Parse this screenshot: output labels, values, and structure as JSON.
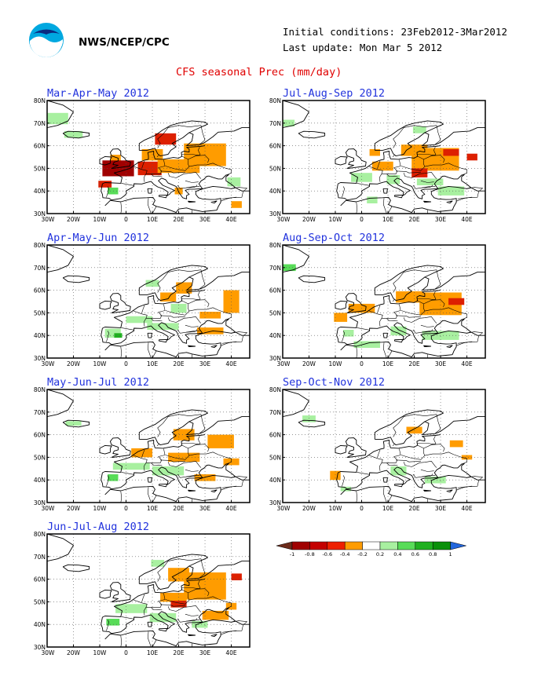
{
  "header": {
    "org": "NWS/NCEP/CPC",
    "initial_conditions": "Initial conditions: 23Feb2012-3Mar2012",
    "last_update": "Last update: Mon Mar 5 2012",
    "title": "CFS seasonal Prec (mm/day)"
  },
  "axes": {
    "lat_labels": [
      "80N",
      "70N",
      "60N",
      "50N",
      "40N",
      "30N"
    ],
    "lon_labels": [
      "30W",
      "20W",
      "10W",
      "0",
      "10E",
      "20E",
      "30E",
      "40E"
    ]
  },
  "colors": {
    "dry_strong": "#a00000",
    "dry_mid": "#dd2000",
    "dry_weak": "#ff9c00",
    "wet_weak": "#a8f0a0",
    "wet_mid": "#58dc58",
    "wet_strong": "#20b020",
    "neutral": "#ffffff"
  },
  "panels": [
    {
      "title": "Mar-Apr-May 2012",
      "anomalies": [
        {
          "lon": -28,
          "lat": 72,
          "w": 12,
          "h": 5,
          "v": 0.3
        },
        {
          "lon": -20,
          "lat": 65,
          "w": 7,
          "h": 3,
          "v": 0.3
        },
        {
          "lon": -4,
          "lat": 54,
          "w": 4,
          "h": 4,
          "v": -0.3
        },
        {
          "lon": -3,
          "lat": 50,
          "w": 12,
          "h": 7,
          "v": -0.8
        },
        {
          "lon": 9,
          "lat": 50,
          "w": 9,
          "h": 6,
          "v": -0.5
        },
        {
          "lon": 10,
          "lat": 56,
          "w": 8,
          "h": 5,
          "v": -0.3
        },
        {
          "lon": 15,
          "lat": 63,
          "w": 8,
          "h": 5,
          "v": -0.6
        },
        {
          "lon": 20,
          "lat": 51,
          "w": 16,
          "h": 6,
          "v": -0.3
        },
        {
          "lon": 30,
          "lat": 56,
          "w": 16,
          "h": 10,
          "v": -0.3
        },
        {
          "lon": -8,
          "lat": 43,
          "w": 5,
          "h": 3,
          "v": -0.6
        },
        {
          "lon": -5,
          "lat": 40,
          "w": 4,
          "h": 3,
          "v": 0.4
        },
        {
          "lon": 20,
          "lat": 40,
          "w": 3,
          "h": 3,
          "v": -0.3
        },
        {
          "lon": 41,
          "lat": 44,
          "w": 5,
          "h": 4,
          "v": 0.2
        },
        {
          "lon": 42,
          "lat": 34,
          "w": 4,
          "h": 3,
          "v": -0.3
        }
      ]
    },
    {
      "title": "Jul-Aug-Sep 2012",
      "anomalies": [
        {
          "lon": -28,
          "lat": 70,
          "w": 5,
          "h": 3,
          "v": 0.2
        },
        {
          "lon": 22,
          "lat": 67,
          "w": 5,
          "h": 3,
          "v": 0.2
        },
        {
          "lon": 5,
          "lat": 57,
          "w": 4,
          "h": 3,
          "v": -0.3
        },
        {
          "lon": 20,
          "lat": 58,
          "w": 10,
          "h": 5,
          "v": -0.3
        },
        {
          "lon": 28,
          "lat": 54,
          "w": 18,
          "h": 10,
          "v": -0.3
        },
        {
          "lon": 34,
          "lat": 57,
          "w": 6,
          "h": 3,
          "v": -0.6
        },
        {
          "lon": 42,
          "lat": 55,
          "w": 4,
          "h": 3,
          "v": -0.6
        },
        {
          "lon": 8,
          "lat": 51,
          "w": 8,
          "h": 4,
          "v": -0.3
        },
        {
          "lon": 22,
          "lat": 48,
          "w": 6,
          "h": 4,
          "v": -0.6
        },
        {
          "lon": 0,
          "lat": 46,
          "w": 8,
          "h": 4,
          "v": 0.2
        },
        {
          "lon": 12,
          "lat": 45,
          "w": 5,
          "h": 4,
          "v": 0.3
        },
        {
          "lon": 26,
          "lat": 44,
          "w": 10,
          "h": 3,
          "v": 0.2
        },
        {
          "lon": 34,
          "lat": 40,
          "w": 10,
          "h": 4,
          "v": 0.3
        },
        {
          "lon": 4,
          "lat": 36,
          "w": 4,
          "h": 3,
          "v": 0.3
        }
      ]
    },
    {
      "title": "Apr-May-Jun 2012",
      "anomalies": [
        {
          "lon": 10,
          "lat": 63,
          "w": 5,
          "h": 3,
          "v": 0.2
        },
        {
          "lon": 22,
          "lat": 61,
          "w": 6,
          "h": 5,
          "v": -0.3
        },
        {
          "lon": 16,
          "lat": 57,
          "w": 6,
          "h": 4,
          "v": -0.3
        },
        {
          "lon": 40,
          "lat": 55,
          "w": 6,
          "h": 10,
          "v": -0.3
        },
        {
          "lon": 20,
          "lat": 52,
          "w": 6,
          "h": 4,
          "v": 0.2
        },
        {
          "lon": 5,
          "lat": 47,
          "w": 10,
          "h": 3,
          "v": 0.3
        },
        {
          "lon": -5,
          "lat": 41,
          "w": 6,
          "h": 4,
          "v": 0.3
        },
        {
          "lon": -3,
          "lat": 40,
          "w": 3,
          "h": 2,
          "v": 0.6
        },
        {
          "lon": 14,
          "lat": 44,
          "w": 12,
          "h": 3,
          "v": 0.2
        },
        {
          "lon": 32,
          "lat": 42,
          "w": 10,
          "h": 3,
          "v": -0.3
        },
        {
          "lon": 32,
          "lat": 49,
          "w": 8,
          "h": 3,
          "v": -0.3
        }
      ]
    },
    {
      "title": "Aug-Sep-Oct 2012",
      "anomalies": [
        {
          "lon": -28,
          "lat": 70,
          "w": 6,
          "h": 3,
          "v": 0.4
        },
        {
          "lon": 18,
          "lat": 57,
          "w": 10,
          "h": 5,
          "v": -0.3
        },
        {
          "lon": 30,
          "lat": 54,
          "w": 16,
          "h": 10,
          "v": -0.3
        },
        {
          "lon": 36,
          "lat": 55,
          "w": 6,
          "h": 3,
          "v": -0.6
        },
        {
          "lon": 0,
          "lat": 52,
          "w": 10,
          "h": 4,
          "v": -0.3
        },
        {
          "lon": -8,
          "lat": 48,
          "w": 5,
          "h": 4,
          "v": -0.3
        },
        {
          "lon": -5,
          "lat": 41,
          "w": 4,
          "h": 3,
          "v": 0.2
        },
        {
          "lon": 14,
          "lat": 42,
          "w": 6,
          "h": 4,
          "v": 0.2
        },
        {
          "lon": 30,
          "lat": 40,
          "w": 14,
          "h": 4,
          "v": 0.3
        },
        {
          "lon": 2,
          "lat": 36,
          "w": 10,
          "h": 3,
          "v": 0.2
        }
      ]
    },
    {
      "title": "May-Jun-Jul 2012",
      "anomalies": [
        {
          "lon": -20,
          "lat": 65,
          "w": 6,
          "h": 2,
          "v": 0.2
        },
        {
          "lon": 22,
          "lat": 60,
          "w": 8,
          "h": 5,
          "v": -0.3
        },
        {
          "lon": 36,
          "lat": 57,
          "w": 10,
          "h": 6,
          "v": -0.3
        },
        {
          "lon": 6,
          "lat": 52,
          "w": 8,
          "h": 4,
          "v": -0.3
        },
        {
          "lon": 22,
          "lat": 50,
          "w": 12,
          "h": 4,
          "v": -0.3
        },
        {
          "lon": 2,
          "lat": 46,
          "w": 14,
          "h": 3,
          "v": 0.2
        },
        {
          "lon": 16,
          "lat": 44,
          "w": 12,
          "h": 4,
          "v": 0.3
        },
        {
          "lon": -5,
          "lat": 41,
          "w": 4,
          "h": 3,
          "v": 0.4
        },
        {
          "lon": 30,
          "lat": 41,
          "w": 8,
          "h": 3,
          "v": -0.3
        },
        {
          "lon": 40,
          "lat": 48,
          "w": 6,
          "h": 3,
          "v": -0.3
        }
      ]
    },
    {
      "title": "Sep-Oct-Nov 2012",
      "anomalies": [
        {
          "lon": -20,
          "lat": 67,
          "w": 5,
          "h": 3,
          "v": 0.2
        },
        {
          "lon": 20,
          "lat": 62,
          "w": 6,
          "h": 3,
          "v": -0.3
        },
        {
          "lon": 36,
          "lat": 56,
          "w": 5,
          "h": 3,
          "v": -0.3
        },
        {
          "lon": 40,
          "lat": 50,
          "w": 4,
          "h": 2,
          "v": -0.3
        },
        {
          "lon": -10,
          "lat": 42,
          "w": 4,
          "h": 4,
          "v": -0.3
        },
        {
          "lon": -6,
          "lat": 36,
          "w": 4,
          "h": 2,
          "v": 0.2
        },
        {
          "lon": 14,
          "lat": 44,
          "w": 6,
          "h": 4,
          "v": 0.2
        },
        {
          "lon": 28,
          "lat": 40,
          "w": 8,
          "h": 3,
          "v": 0.3
        }
      ]
    },
    {
      "title": "Jun-Jul-Aug 2012",
      "anomalies": [
        {
          "lon": 12,
          "lat": 67,
          "w": 5,
          "h": 3,
          "v": 0.2
        },
        {
          "lon": 20,
          "lat": 62,
          "w": 8,
          "h": 6,
          "v": -0.3
        },
        {
          "lon": 30,
          "lat": 57,
          "w": 16,
          "h": 12,
          "v": -0.3
        },
        {
          "lon": 42,
          "lat": 61,
          "w": 4,
          "h": 3,
          "v": -0.6
        },
        {
          "lon": 18,
          "lat": 52,
          "w": 10,
          "h": 4,
          "v": -0.3
        },
        {
          "lon": 20,
          "lat": 49,
          "w": 6,
          "h": 3,
          "v": -0.6
        },
        {
          "lon": 2,
          "lat": 47,
          "w": 12,
          "h": 4,
          "v": 0.3
        },
        {
          "lon": -5,
          "lat": 41,
          "w": 5,
          "h": 3,
          "v": 0.4
        },
        {
          "lon": 14,
          "lat": 43,
          "w": 10,
          "h": 4,
          "v": 0.2
        },
        {
          "lon": 34,
          "lat": 44,
          "w": 10,
          "h": 4,
          "v": -0.3
        },
        {
          "lon": 28,
          "lat": 40,
          "w": 6,
          "h": 3,
          "v": 0.2
        },
        {
          "lon": 40,
          "lat": 48,
          "w": 4,
          "h": 3,
          "v": -0.3
        }
      ]
    }
  ],
  "colorbar": {
    "labels": [
      "-1",
      "-0.8",
      "-0.6",
      "-0.4",
      "-0.2",
      "0.2",
      "0.4",
      "0.6",
      "0.8",
      "1"
    ],
    "colors": [
      "#6b2a1a",
      "#a00000",
      "#c40000",
      "#ee2000",
      "#ff9c00",
      "#ffffff",
      "#a8f0a0",
      "#58dc58",
      "#20b020",
      "#0a900a",
      "#2266dd"
    ]
  }
}
